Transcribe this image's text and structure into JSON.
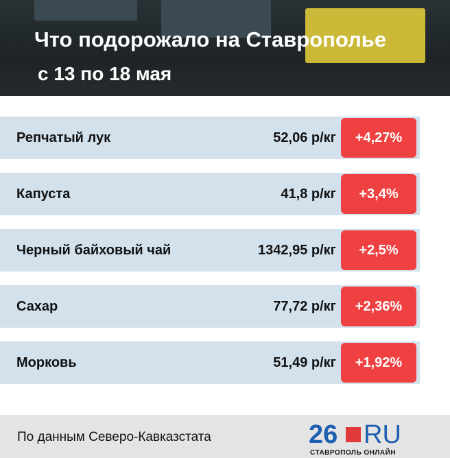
{
  "header": {
    "title": "Что подорожало на Ставрополье",
    "subtitle": "с 13 по 18 мая"
  },
  "table": {
    "rows": [
      {
        "name": "Репчатый лук",
        "price": "52,06 р/кг",
        "change": "+4,27%"
      },
      {
        "name": "Капуста",
        "price": "41,8 р/кг",
        "change": "+3,4%"
      },
      {
        "name": "Черный байховый чай",
        "price": "1342,95 р/кг",
        "change": "+2,5%"
      },
      {
        "name": "Сахар",
        "price": "77,72 р/кг",
        "change": "+2,36%"
      },
      {
        "name": "Морковь",
        "price": "51,49 р/кг",
        "change": "+1,92%"
      }
    ]
  },
  "footer": {
    "source": "По данным Северо-Кавказстата",
    "logo_number": "26",
    "logo_domain": "RU",
    "logo_caption": "СТАВРОПОЛЬ ОНЛАЙН"
  }
}
